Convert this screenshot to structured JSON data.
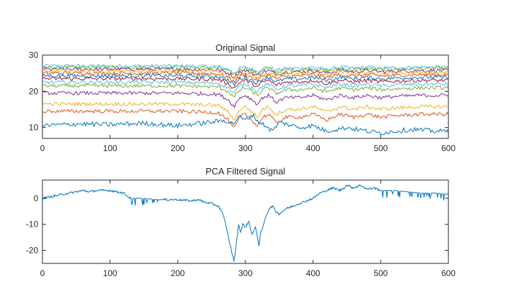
{
  "chart_data": [
    {
      "type": "line",
      "title": "Original Signal",
      "xlabel": "",
      "ylabel": "",
      "xlim": [
        0,
        600
      ],
      "ylim": [
        7,
        30
      ],
      "xticks": [
        0,
        100,
        200,
        300,
        400,
        500,
        600
      ],
      "yticks": [
        10,
        20,
        30
      ],
      "grid": false,
      "note": "Multi-channel signal; channels stacked between ~10 and ~27 with a common dip near x=280-340",
      "series": [
        {
          "color": "#0072BD",
          "base": 10.5,
          "x": [
            0,
            50,
            100,
            150,
            200,
            250,
            270,
            282,
            290,
            300,
            310,
            320,
            330,
            340,
            350,
            380,
            400,
            420,
            450,
            480,
            500,
            520,
            550,
            580,
            600
          ],
          "y": [
            10.5,
            11,
            10.8,
            11.2,
            10.5,
            11.5,
            12,
            11,
            13,
            12,
            13.5,
            11.5,
            10.5,
            9,
            11.5,
            10,
            10.5,
            9,
            10,
            9,
            8.5,
            9,
            9.5,
            9,
            9
          ]
        },
        {
          "color": "#D95319",
          "base": 14.5
        },
        {
          "color": "#EDB120",
          "base": 16.5
        },
        {
          "color": "#7E2F8E",
          "base": 19.5
        },
        {
          "color": "#77AC30",
          "base": 21.5
        },
        {
          "color": "#4DBEEE",
          "base": 22.5
        },
        {
          "color": "#A2142F",
          "base": 23.5
        },
        {
          "color": "#0072BD",
          "base": 24.3
        },
        {
          "color": "#D95319",
          "base": 25
        },
        {
          "color": "#EDB120",
          "base": 25.6
        },
        {
          "color": "#7E2F8E",
          "base": 26.1
        },
        {
          "color": "#77AC30",
          "base": 26.6
        },
        {
          "color": "#4DBEEE",
          "base": 27
        }
      ]
    },
    {
      "type": "line",
      "title": "PCA Filtered Signal",
      "xlabel": "",
      "ylabel": "",
      "xlim": [
        0,
        600
      ],
      "ylim": [
        -25,
        7
      ],
      "xticks": [
        0,
        100,
        200,
        300,
        400,
        500,
        600
      ],
      "yticks": [
        -20,
        -10,
        0
      ],
      "grid": false,
      "series": [
        {
          "color": "#0072BD",
          "x": [
            0,
            10,
            20,
            30,
            40,
            50,
            60,
            70,
            80,
            100,
            120,
            125,
            130,
            150,
            170,
            200,
            220,
            230,
            240,
            250,
            260,
            265,
            270,
            275,
            280,
            283,
            285,
            288,
            290,
            293,
            296,
            300,
            305,
            310,
            315,
            320,
            323,
            326,
            330,
            335,
            340,
            345,
            350,
            360,
            370,
            380,
            390,
            400,
            410,
            420,
            430,
            440,
            450,
            460,
            470,
            480,
            490,
            500,
            520,
            540,
            560,
            580,
            600
          ],
          "y": [
            0,
            0.5,
            1,
            1.5,
            2,
            2.5,
            3,
            2.5,
            3,
            3,
            2,
            1,
            0,
            0,
            -0.5,
            -0.5,
            -1,
            -0.5,
            -1.5,
            -2,
            -3,
            -5,
            -9,
            -15,
            -21,
            -24,
            -21,
            -14,
            -10,
            -13,
            -10,
            -11,
            -9,
            -14,
            -11,
            -18,
            -13,
            -11,
            -7,
            -4,
            -3,
            -5,
            -6,
            -4,
            -3,
            -2,
            -1,
            0,
            2,
            3,
            4,
            3,
            5,
            4,
            5,
            3.5,
            4,
            3,
            3,
            2.5,
            2,
            2,
            1.5
          ]
        }
      ]
    }
  ]
}
